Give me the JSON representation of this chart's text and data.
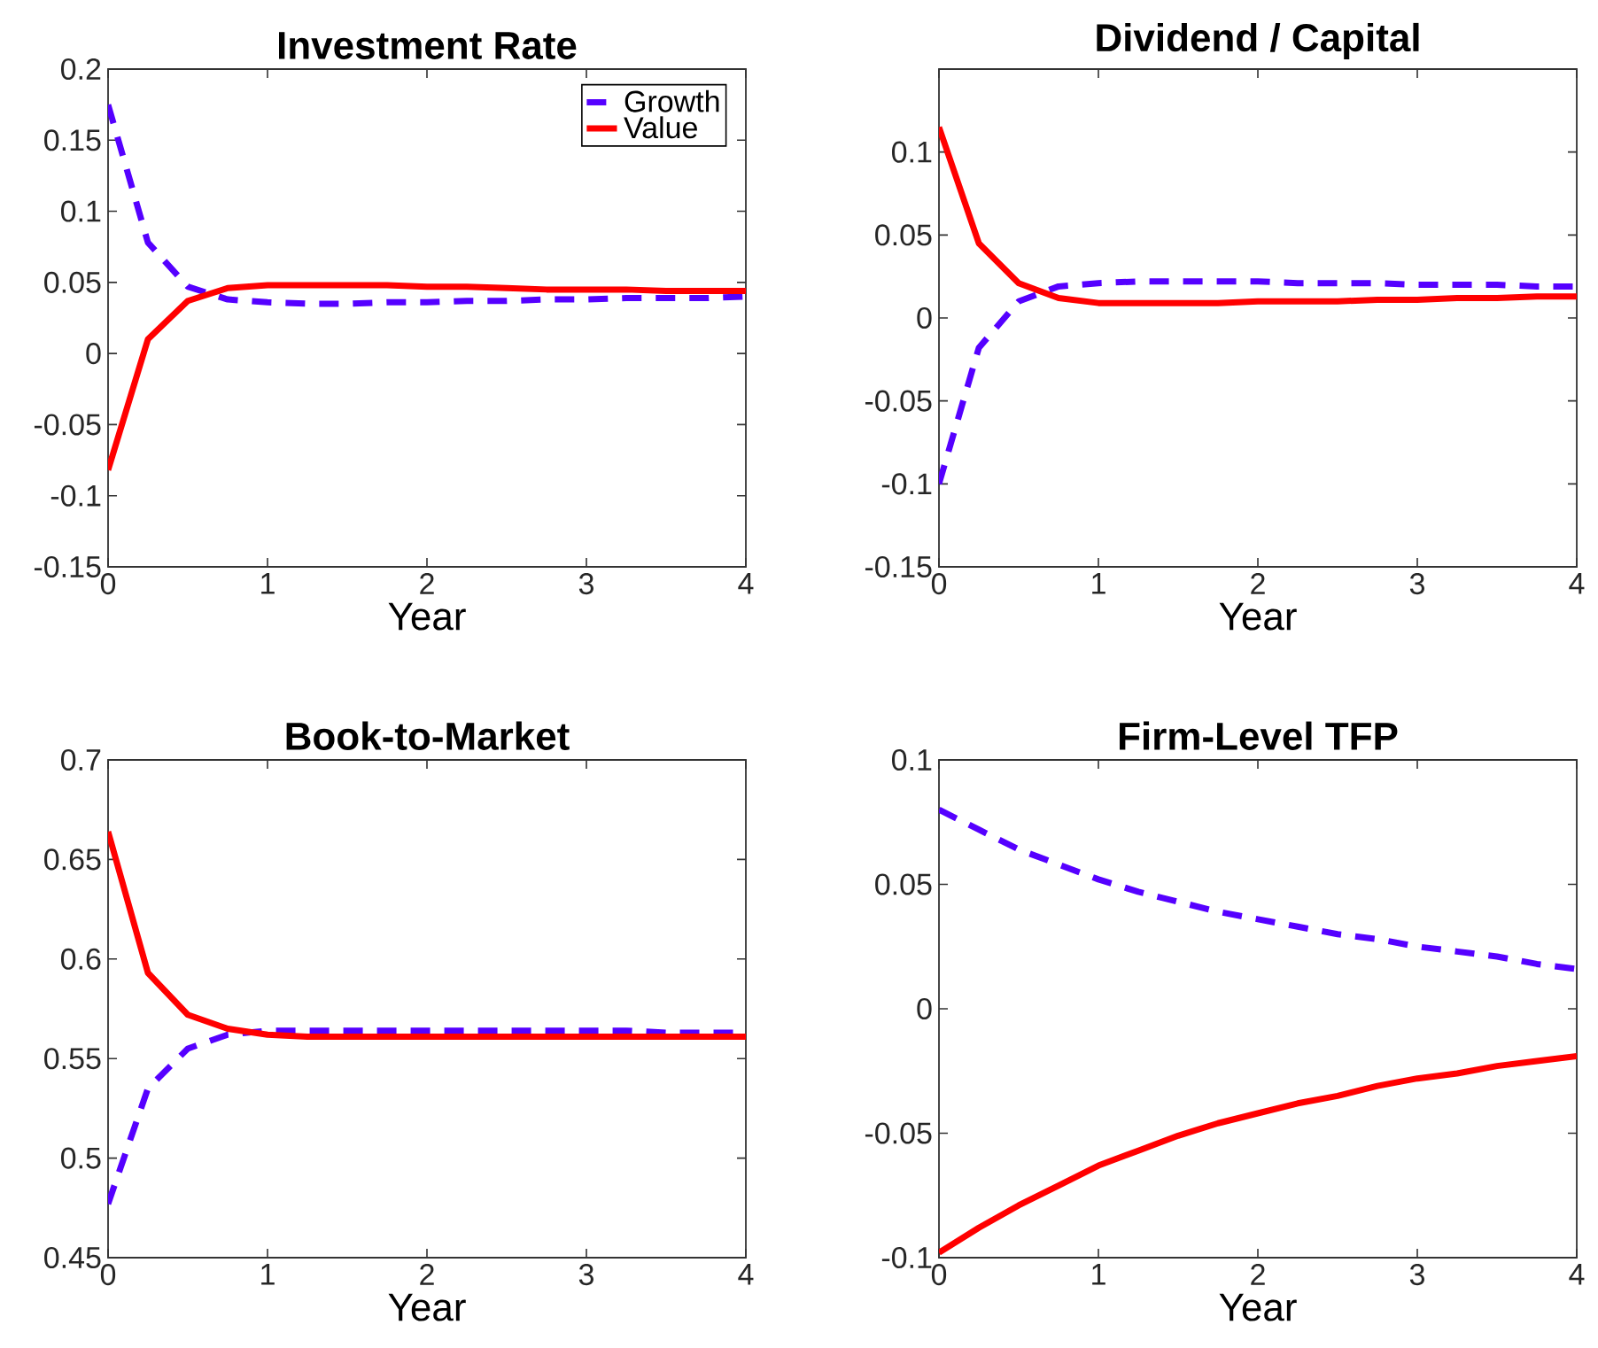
{
  "chart_data": [
    {
      "type": "line",
      "title": "Investment Rate",
      "xlabel": "Year",
      "x": [
        0,
        0.25,
        0.5,
        0.75,
        1,
        1.25,
        1.5,
        1.75,
        2,
        2.25,
        2.5,
        2.75,
        3,
        3.25,
        3.5,
        3.75,
        4
      ],
      "xlim": [
        0,
        4
      ],
      "xticks": [
        0,
        1,
        2,
        3,
        4
      ],
      "ylim": [
        -0.15,
        0.2
      ],
      "yticks": [
        -0.15,
        -0.1,
        -0.05,
        0,
        0.05,
        0.1,
        0.15,
        0.2
      ],
      "legend": "top right",
      "series": [
        {
          "name": "Growth",
          "color": "#5500ff",
          "line_style": "dashed",
          "values": [
            0.175,
            0.078,
            0.047,
            0.038,
            0.036,
            0.035,
            0.035,
            0.036,
            0.036,
            0.037,
            0.037,
            0.038,
            0.038,
            0.039,
            0.039,
            0.039,
            0.04
          ]
        },
        {
          "name": "Value",
          "color": "#ff0000",
          "line_style": "solid",
          "values": [
            -0.082,
            0.01,
            0.037,
            0.046,
            0.048,
            0.048,
            0.048,
            0.048,
            0.047,
            0.047,
            0.046,
            0.045,
            0.045,
            0.045,
            0.044,
            0.044,
            0.044
          ]
        }
      ]
    },
    {
      "type": "line",
      "title": "Dividend / Capital",
      "xlabel": "Year",
      "x": [
        0,
        0.25,
        0.5,
        0.75,
        1,
        1.25,
        1.5,
        1.75,
        2,
        2.25,
        2.5,
        2.75,
        3,
        3.25,
        3.5,
        3.75,
        4
      ],
      "xlim": [
        0,
        4
      ],
      "xticks": [
        0,
        1,
        2,
        3,
        4
      ],
      "ylim": [
        -0.15,
        0.15
      ],
      "yticks": [
        -0.15,
        -0.1,
        -0.05,
        0,
        0.05,
        0.1
      ],
      "series": [
        {
          "color": "#5500ff",
          "line_style": "dashed",
          "values": [
            -0.1,
            -0.018,
            0.01,
            0.019,
            0.021,
            0.022,
            0.022,
            0.022,
            0.022,
            0.021,
            0.021,
            0.021,
            0.02,
            0.02,
            0.02,
            0.019,
            0.019
          ]
        },
        {
          "color": "#ff0000",
          "line_style": "solid",
          "values": [
            0.115,
            0.045,
            0.021,
            0.012,
            0.009,
            0.009,
            0.009,
            0.009,
            0.01,
            0.01,
            0.01,
            0.011,
            0.011,
            0.012,
            0.012,
            0.013,
            0.013
          ]
        }
      ]
    },
    {
      "type": "line",
      "title": "Book-to-Market",
      "xlabel": "Year",
      "x": [
        0,
        0.25,
        0.5,
        0.75,
        1,
        1.25,
        1.5,
        1.75,
        2,
        2.25,
        2.5,
        2.75,
        3,
        3.25,
        3.5,
        3.75,
        4
      ],
      "xlim": [
        0,
        4
      ],
      "xticks": [
        0,
        1,
        2,
        3,
        4
      ],
      "ylim": [
        0.45,
        0.7
      ],
      "yticks": [
        0.45,
        0.5,
        0.55,
        0.6,
        0.65,
        0.7
      ],
      "series": [
        {
          "color": "#5500ff",
          "line_style": "dashed",
          "values": [
            0.477,
            0.535,
            0.555,
            0.562,
            0.564,
            0.564,
            0.564,
            0.564,
            0.564,
            0.564,
            0.564,
            0.564,
            0.564,
            0.564,
            0.563,
            0.563,
            0.563
          ]
        },
        {
          "color": "#ff0000",
          "line_style": "solid",
          "values": [
            0.664,
            0.593,
            0.572,
            0.565,
            0.562,
            0.561,
            0.561,
            0.561,
            0.561,
            0.561,
            0.561,
            0.561,
            0.561,
            0.561,
            0.561,
            0.561,
            0.561
          ]
        }
      ]
    },
    {
      "type": "line",
      "title": "Firm-Level TFP",
      "xlabel": "Year",
      "x": [
        0,
        0.25,
        0.5,
        0.75,
        1,
        1.25,
        1.5,
        1.75,
        2,
        2.25,
        2.5,
        2.75,
        3,
        3.25,
        3.5,
        3.75,
        4
      ],
      "xlim": [
        0,
        4
      ],
      "xticks": [
        0,
        1,
        2,
        3,
        4
      ],
      "ylim": [
        -0.1,
        0.1
      ],
      "yticks": [
        -0.1,
        -0.05,
        0,
        0.05,
        0.1
      ],
      "series": [
        {
          "color": "#5500ff",
          "line_style": "dashed",
          "values": [
            0.08,
            0.072,
            0.064,
            0.058,
            0.052,
            0.047,
            0.043,
            0.039,
            0.036,
            0.033,
            0.03,
            0.028,
            0.025,
            0.023,
            0.021,
            0.018,
            0.016
          ]
        },
        {
          "color": "#ff0000",
          "line_style": "solid",
          "values": [
            -0.098,
            -0.088,
            -0.079,
            -0.071,
            -0.063,
            -0.057,
            -0.051,
            -0.046,
            -0.042,
            -0.038,
            -0.035,
            -0.031,
            -0.028,
            -0.026,
            -0.023,
            -0.021,
            -0.019
          ]
        }
      ]
    }
  ]
}
